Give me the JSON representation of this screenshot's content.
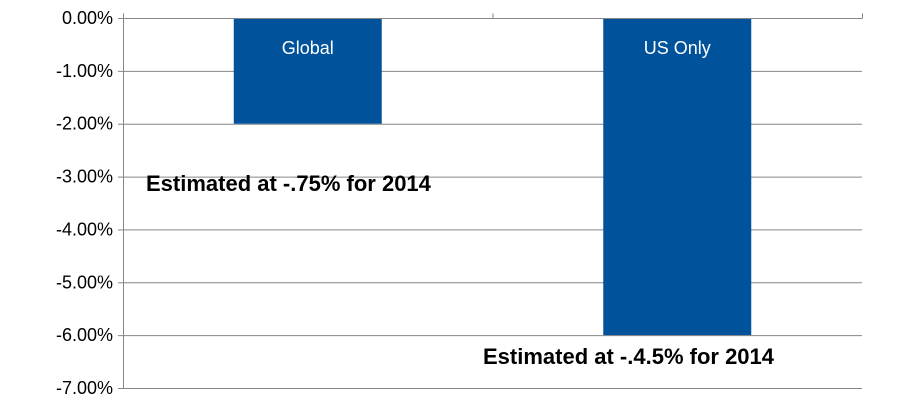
{
  "chart_data": {
    "type": "bar",
    "categories": [
      "Global",
      "US Only"
    ],
    "values": [
      -2.0,
      -6.0
    ],
    "title": "",
    "xlabel": "",
    "ylabel": "",
    "ylim": [
      -7.0,
      0.0
    ],
    "y_ticks": [
      "0.00%",
      "-1.00%",
      "-2.00%",
      "-3.00%",
      "-4.00%",
      "-5.00%",
      "-6.00%",
      "-7.00%"
    ],
    "y_tick_values": [
      0,
      -1,
      -2,
      -3,
      -4,
      -5,
      -6,
      -7
    ],
    "grid": true,
    "bar_color": "#00539B",
    "grid_color": "#868686",
    "category_labels_inside_bars": true,
    "annotations": [
      {
        "text": "Estimated at -.75% for 2014",
        "category": "Global"
      },
      {
        "text": "Estimated at -.4.5% for 2014",
        "category": "US Only"
      }
    ]
  }
}
